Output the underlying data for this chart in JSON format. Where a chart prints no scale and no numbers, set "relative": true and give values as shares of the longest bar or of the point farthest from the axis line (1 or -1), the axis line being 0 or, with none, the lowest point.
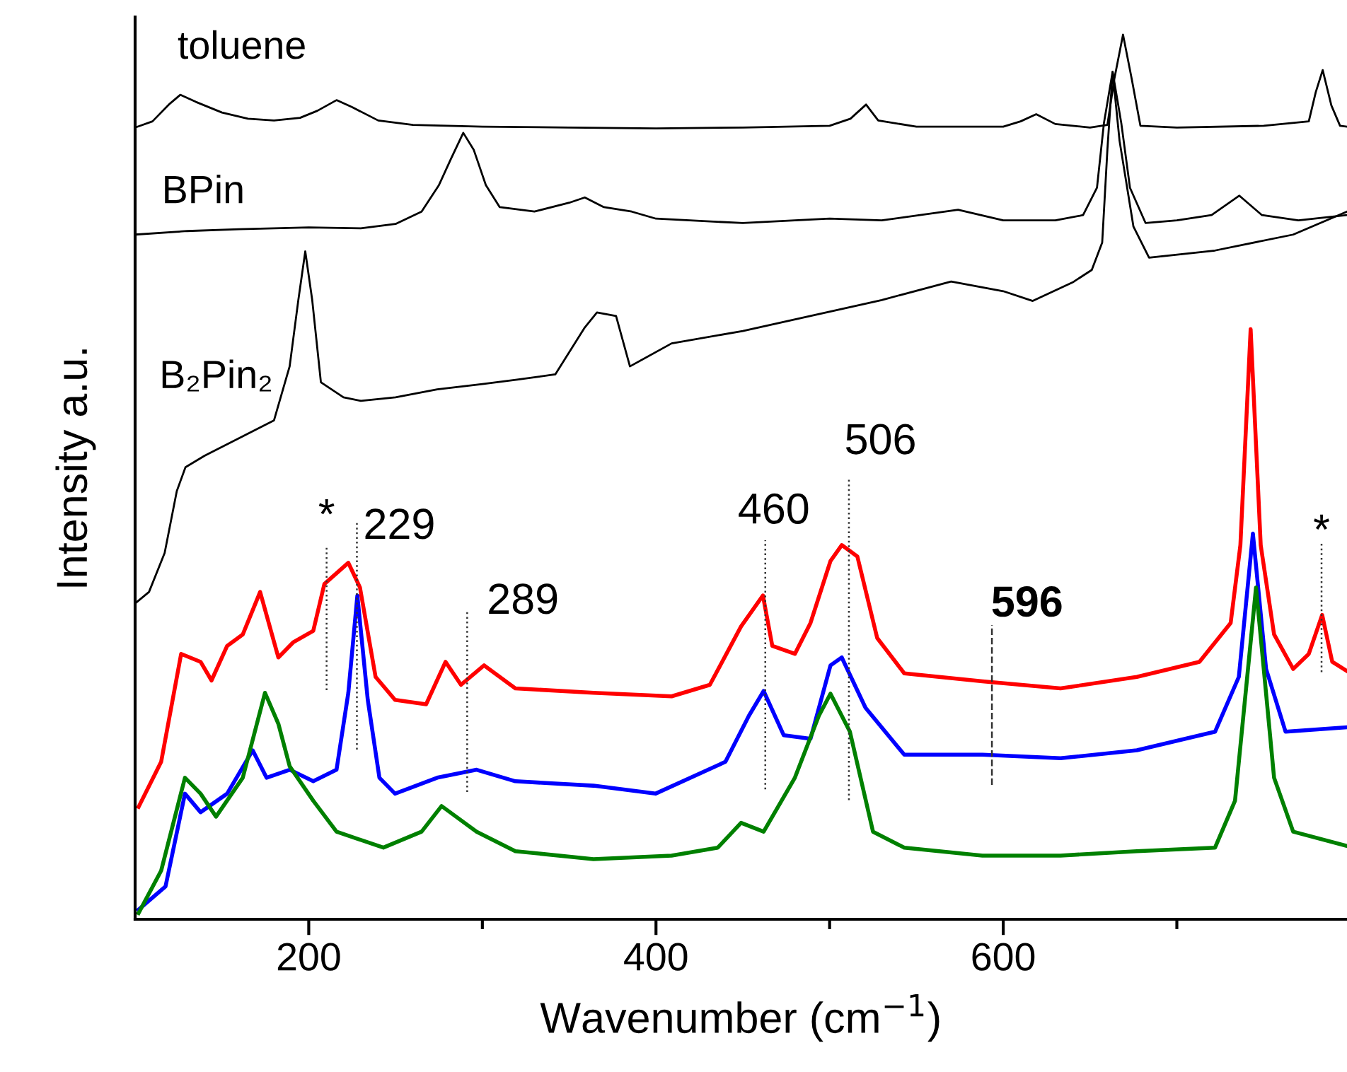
{
  "chart_data": {
    "type": "line",
    "relative": true,
    "xlabel": "Wavenumber (cm$^{−1}$)",
    "ylabel": "Intensity a.u.",
    "xlim": [
      100,
      798
    ],
    "xticks": [
      200,
      {
        "value": 300,
        "label": null
      },
      400,
      {
        "value": 500,
        "label": null
      },
      600,
      {
        "value": 700,
        "label": null
      }
    ],
    "tick_labels": "x",
    "grid": false,
    "series": [
      {
        "name": "toluene",
        "color": "#000000",
        "x": [
          100,
          110,
          120,
          126,
          135,
          150,
          165,
          180,
          195,
          205,
          216,
          225,
          240,
          260,
          300,
          350,
          400,
          450,
          500,
          512,
          521,
          528,
          550,
          600,
          610,
          619,
          630,
          650,
          660,
          664,
          669,
          674,
          679,
          700,
          750,
          776,
          780,
          784,
          789,
          794,
          798
        ],
        "values": [
          0.895,
          0.902,
          0.922,
          0.932,
          0.924,
          0.912,
          0.905,
          0.903,
          0.906,
          0.914,
          0.926,
          0.918,
          0.903,
          0.898,
          0.896,
          0.895,
          0.894,
          0.895,
          0.897,
          0.905,
          0.921,
          0.903,
          0.896,
          0.896,
          0.902,
          0.91,
          0.899,
          0.895,
          0.898,
          0.95,
          1.0,
          0.95,
          0.897,
          0.895,
          0.897,
          0.902,
          0.935,
          0.96,
          0.92,
          0.897,
          0.896
        ]
      },
      {
        "name": "BPin",
        "color": "#000000",
        "x": [
          100,
          130,
          160,
          200,
          230,
          250,
          265,
          275,
          282,
          289,
          295,
          302,
          310,
          330,
          350,
          359,
          370,
          386,
          400,
          450,
          500,
          530,
          574,
          600,
          630,
          646,
          654,
          658,
          663,
          668,
          673,
          682,
          700,
          720,
          736,
          749,
          770,
          798
        ],
        "values": [
          0.774,
          0.778,
          0.78,
          0.782,
          0.781,
          0.786,
          0.8,
          0.83,
          0.86,
          0.889,
          0.87,
          0.83,
          0.805,
          0.8,
          0.81,
          0.816,
          0.805,
          0.8,
          0.792,
          0.787,
          0.792,
          0.79,
          0.802,
          0.79,
          0.79,
          0.796,
          0.827,
          0.9,
          0.958,
          0.9,
          0.827,
          0.787,
          0.79,
          0.796,
          0.818,
          0.796,
          0.79,
          0.796
        ]
      },
      {
        "name": "B₂Pin₂",
        "color": "#000000",
        "x": [
          100,
          108,
          117,
          124,
          129,
          140,
          162,
          180,
          189,
          194,
          198,
          202,
          207,
          220,
          230,
          250,
          274,
          300,
          320,
          342,
          359,
          366,
          377,
          385,
          409,
          450,
          498,
          530,
          570,
          600,
          617,
          640,
          651,
          657,
          660,
          663,
          667,
          675,
          684,
          722,
          767,
          798
        ],
        "values": [
          0.357,
          0.37,
          0.414,
          0.484,
          0.511,
          0.524,
          0.546,
          0.564,
          0.625,
          0.7,
          0.755,
          0.7,
          0.607,
          0.59,
          0.586,
          0.59,
          0.599,
          0.605,
          0.61,
          0.616,
          0.669,
          0.686,
          0.682,
          0.625,
          0.651,
          0.665,
          0.686,
          0.7,
          0.721,
          0.71,
          0.699,
          0.72,
          0.734,
          0.765,
          0.87,
          0.958,
          0.88,
          0.783,
          0.748,
          0.756,
          0.774,
          0.8
        ]
      },
      {
        "color": "#ff0000",
        "x": [
          102,
          115,
          126.5,
          137.7,
          144,
          153,
          162,
          172,
          182.5,
          191,
          202.6,
          209,
          222.8,
          229.5,
          238.5,
          249.7,
          267.6,
          278.8,
          287.7,
          301,
          319,
          364,
          409,
          431,
          449,
          461.6,
          467,
          480,
          489,
          500.5,
          507,
          516,
          527.4,
          543,
          588,
          633,
          677,
          713,
          731,
          736.6,
          742.5,
          748.3,
          756,
          767,
          776,
          783.7,
          789.5,
          797.6
        ],
        "values": [
          0.127,
          0.178,
          0.3,
          0.291,
          0.27,
          0.309,
          0.322,
          0.37,
          0.296,
          0.313,
          0.326,
          0.379,
          0.403,
          0.375,
          0.274,
          0.248,
          0.243,
          0.291,
          0.265,
          0.287,
          0.261,
          0.256,
          0.252,
          0.265,
          0.331,
          0.366,
          0.309,
          0.3,
          0.335,
          0.405,
          0.423,
          0.41,
          0.318,
          0.278,
          0.269,
          0.261,
          0.274,
          0.291,
          0.335,
          0.423,
          0.667,
          0.423,
          0.322,
          0.283,
          0.3,
          0.344,
          0.291,
          0.281
        ]
      },
      {
        "color": "#0000ff",
        "x": [
          102,
          117.5,
          128.7,
          137.7,
          153,
          167.7,
          175.7,
          189,
          202.6,
          216,
          222.8,
          228,
          234,
          240.7,
          249.7,
          274,
          296.7,
          319,
          364,
          399.7,
          440,
          453.5,
          462,
          473.6,
          489,
          500.5,
          507,
          520.7,
          543,
          588,
          633,
          677,
          722,
          735.7,
          743.8,
          751.4,
          762.6,
          797.6
        ],
        "values": [
          0.011,
          0.037,
          0.142,
          0.121,
          0.142,
          0.191,
          0.16,
          0.169,
          0.156,
          0.169,
          0.256,
          0.366,
          0.248,
          0.16,
          0.142,
          0.16,
          0.169,
          0.156,
          0.151,
          0.142,
          0.178,
          0.23,
          0.258,
          0.208,
          0.204,
          0.287,
          0.296,
          0.239,
          0.186,
          0.186,
          0.182,
          0.191,
          0.212,
          0.274,
          0.436,
          0.283,
          0.212,
          0.217
        ]
      },
      {
        "color": "#008000",
        "x": [
          102,
          115,
          128.7,
          137.7,
          146.6,
          162,
          174.8,
          182.5,
          189,
          202.6,
          216,
          243,
          265,
          276.5,
          296.7,
          319,
          364,
          409,
          435.6,
          449,
          462,
          480,
          493.8,
          500.5,
          511.7,
          525,
          543,
          588,
          633,
          677,
          722,
          733.5,
          745.6,
          756,
          767,
          797.6
        ],
        "values": [
          0.007,
          0.055,
          0.16,
          0.142,
          0.116,
          0.16,
          0.256,
          0.221,
          0.173,
          0.134,
          0.099,
          0.081,
          0.099,
          0.128,
          0.099,
          0.077,
          0.068,
          0.072,
          0.081,
          0.109,
          0.099,
          0.16,
          0.23,
          0.255,
          0.212,
          0.099,
          0.081,
          0.072,
          0.072,
          0.077,
          0.081,
          0.134,
          0.375,
          0.16,
          0.099,
          0.083
        ]
      }
    ],
    "annotations": [
      "*",
      "229",
      "289",
      "460",
      "506",
      "596",
      "*"
    ]
  }
}
